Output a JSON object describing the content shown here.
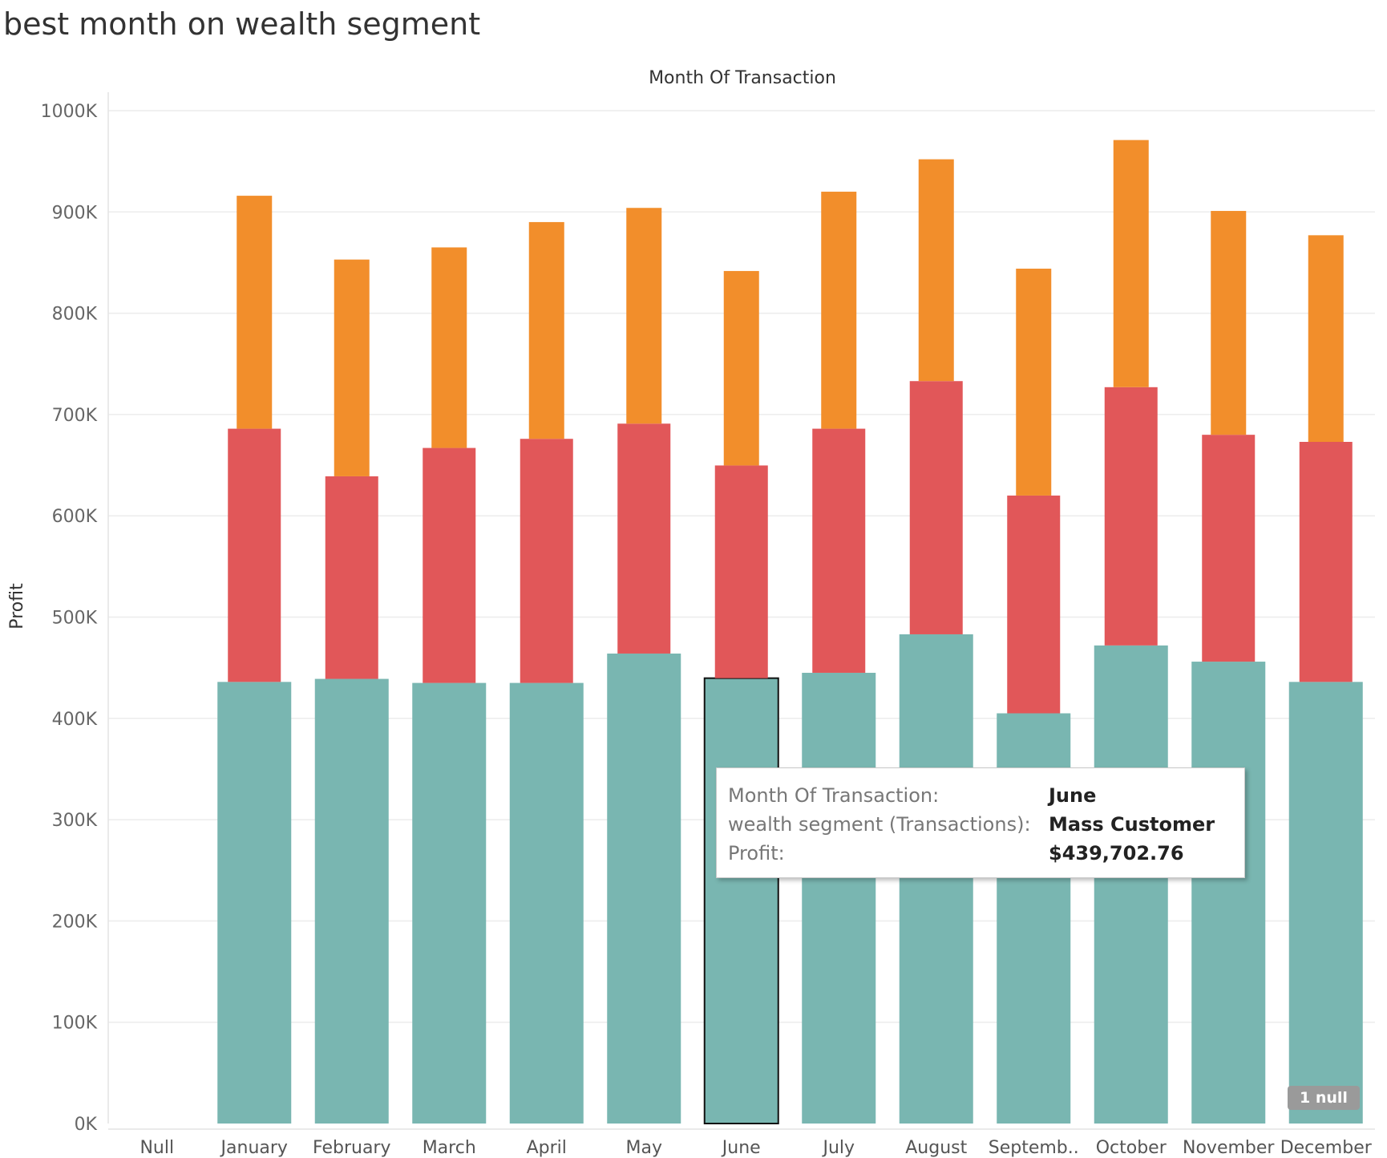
{
  "title": "best month on wealth segment",
  "chart_data": {
    "type": "bar",
    "stacked": true,
    "xlabel": "Month Of Transaction",
    "ylabel": "Profit",
    "ylim": [
      0,
      1000000
    ],
    "yticks": [
      "0K",
      "100K",
      "200K",
      "300K",
      "400K",
      "500K",
      "600K",
      "700K",
      "800K",
      "900K",
      "1000K"
    ],
    "categories": [
      "Null",
      "January",
      "February",
      "March",
      "April",
      "May",
      "June",
      "July",
      "August",
      "Septemb..",
      "October",
      "November",
      "December"
    ],
    "grid": true,
    "series": [
      {
        "color": "#79b6b1",
        "values": [
          0,
          436000,
          439000,
          435000,
          435000,
          464000,
          439703,
          445000,
          483000,
          405000,
          472000,
          456000,
          436000
        ]
      },
      {
        "color": "#e15759",
        "values": [
          0,
          250000,
          200000,
          232000,
          241000,
          227000,
          210000,
          241000,
          250000,
          215000,
          255000,
          224000,
          237000
        ]
      },
      {
        "color": "#f28e2b",
        "values": [
          0,
          230000,
          214000,
          198000,
          214000,
          213000,
          192000,
          234000,
          219000,
          224000,
          244000,
          221000,
          204000
        ]
      }
    ],
    "highlight_index": 6
  },
  "tooltip": {
    "rows": [
      {
        "label": "Month Of Transaction:",
        "value": "June"
      },
      {
        "label": "wealth segment (Transactions):",
        "value": "Mass Customer"
      },
      {
        "label": "Profit:",
        "value": "$439,702.76"
      }
    ]
  },
  "null_badge": "1 null"
}
